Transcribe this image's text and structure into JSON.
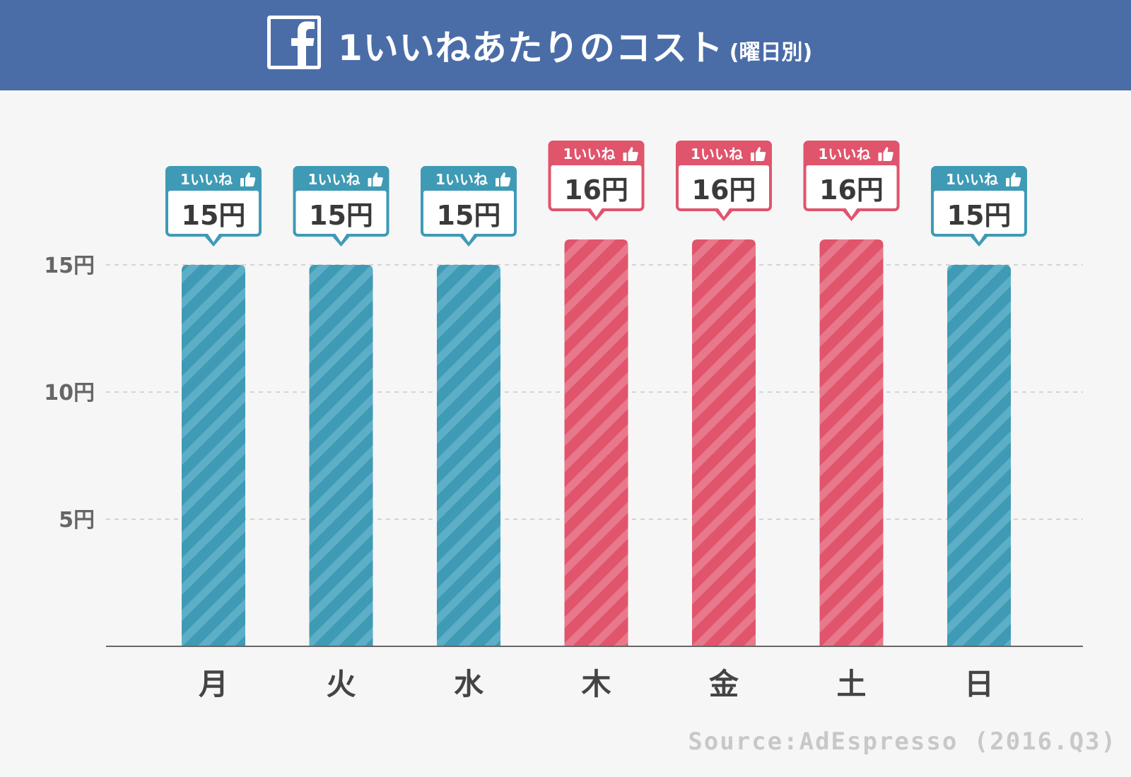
{
  "header": {
    "title": "1いいねあたりのコスト",
    "subtitle": "(曜日別)",
    "logo_icon": "facebook-f-icon",
    "background_color": "#4a6da8"
  },
  "chart_data": {
    "type": "bar",
    "categories": [
      "月",
      "火",
      "水",
      "木",
      "金",
      "土",
      "日"
    ],
    "values": [
      15,
      15,
      15,
      16,
      16,
      16,
      15
    ],
    "unit": "円",
    "yticks": [
      "5円",
      "10円",
      "15円"
    ],
    "ytick_values": [
      5,
      10,
      15
    ],
    "ylim": [
      0,
      16
    ],
    "grid": true,
    "callout_heading": "1いいね",
    "callout_icon": "thumbs-up-icon",
    "callout_labels": [
      "15円",
      "15円",
      "15円",
      "16円",
      "16円",
      "16円",
      "15円"
    ],
    "colors": {
      "low": "#3f9ab5",
      "high": "#e0546c",
      "low_stripe": "#5cafc6",
      "high_stripe": "#e8788b"
    }
  },
  "source": "Source:AdEspresso (2016.Q3)"
}
